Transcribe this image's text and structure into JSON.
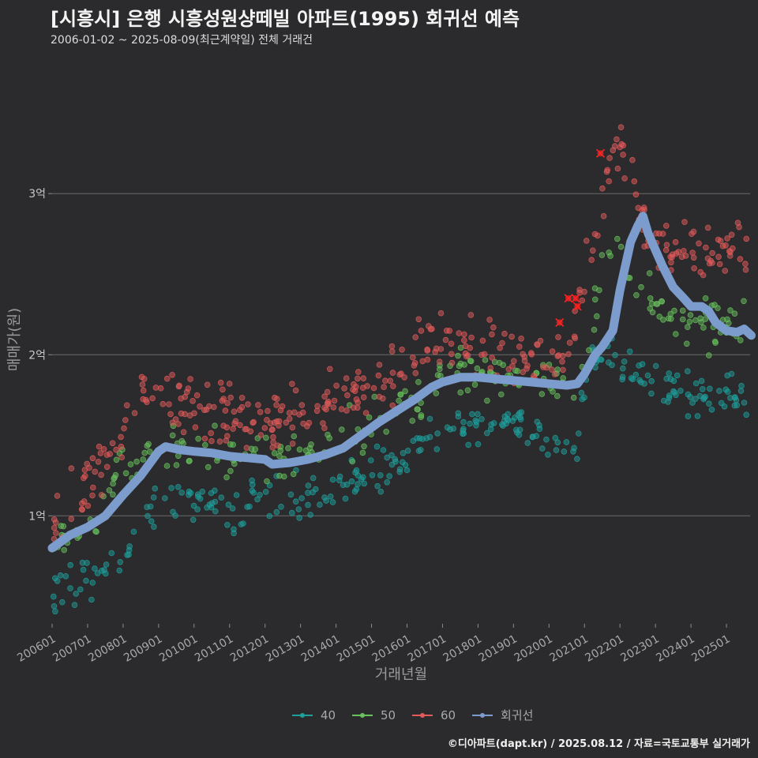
{
  "header": {
    "title": "[시흥시] 은행 시흥성원샹떼빌 아파트(1995) 회귀선 예측",
    "subtitle": "2006-01-02 ~ 2025-08-09(최근계약일) 전체 거래건"
  },
  "footer": {
    "credit": "©디아파트(dapt.kr) / 2025.08.12 / 자료=국토교통부 실거래가"
  },
  "chart_data": {
    "type": "scatter",
    "xlabel": "거래년월",
    "ylabel": "매매가(원)",
    "x_range": [
      "2006-01-01",
      "2025-09-01"
    ],
    "ylim": [
      0.33,
      3.8
    ],
    "y_unit": "억",
    "x_ticks": [
      "200601",
      "200701",
      "200801",
      "200901",
      "201001",
      "201101",
      "201201",
      "201301",
      "201401",
      "201501",
      "201601",
      "201701",
      "201801",
      "201901",
      "202001",
      "202101",
      "202201",
      "202301",
      "202401",
      "202501"
    ],
    "y_ticks": [
      {
        "value": 1,
        "label": "1억"
      },
      {
        "value": 2,
        "label": "2억"
      },
      {
        "value": 3,
        "label": "3억"
      }
    ],
    "grid": "horizontal",
    "legend_position": "bottom",
    "colors": {
      "40": "#1e9f9c",
      "50": "#68c25c",
      "60": "#e45a5a",
      "regression": "#7b9ccc",
      "highlight": "#ff2222",
      "background": "#2b2b2d"
    },
    "series": [
      {
        "name": "40",
        "trend": [
          [
            2006.0,
            0.55
          ],
          [
            2007.0,
            0.62
          ],
          [
            2008.0,
            0.78
          ],
          [
            2009.0,
            1.05
          ],
          [
            2010.0,
            1.1
          ],
          [
            2011.0,
            1.05
          ],
          [
            2012.0,
            1.08
          ],
          [
            2013.0,
            1.1
          ],
          [
            2014.0,
            1.15
          ],
          [
            2015.0,
            1.25
          ],
          [
            2016.0,
            1.35
          ],
          [
            2017.0,
            1.55
          ],
          [
            2018.0,
            1.6
          ],
          [
            2019.0,
            1.55
          ],
          [
            2020.0,
            1.5
          ],
          [
            2020.8,
            1.45
          ],
          [
            2021.0,
            1.9
          ],
          [
            2021.5,
            2.05
          ],
          [
            2022.5,
            1.9
          ],
          [
            2023.5,
            1.8
          ],
          [
            2024.5,
            1.75
          ],
          [
            2025.6,
            1.7
          ]
        ],
        "count": 300,
        "spread": 0.07
      },
      {
        "name": "50",
        "trend": [
          [
            2006.0,
            0.75
          ],
          [
            2007.0,
            0.95
          ],
          [
            2008.0,
            1.25
          ],
          [
            2009.0,
            1.45
          ],
          [
            2010.0,
            1.38
          ],
          [
            2011.0,
            1.35
          ],
          [
            2012.0,
            1.35
          ],
          [
            2013.0,
            1.38
          ],
          [
            2014.0,
            1.45
          ],
          [
            2015.0,
            1.55
          ],
          [
            2016.0,
            1.68
          ],
          [
            2017.0,
            1.85
          ],
          [
            2018.0,
            1.9
          ],
          [
            2019.0,
            1.85
          ],
          [
            2020.0,
            1.78
          ],
          [
            2021.0,
            2.0
          ],
          [
            2021.8,
            2.7
          ],
          [
            2022.5,
            2.45
          ],
          [
            2023.5,
            2.25
          ],
          [
            2024.5,
            2.2
          ],
          [
            2025.6,
            2.2
          ]
        ],
        "count": 250,
        "spread": 0.08
      },
      {
        "name": "60",
        "trend": [
          [
            2006.0,
            0.92
          ],
          [
            2007.0,
            1.2
          ],
          [
            2008.0,
            1.5
          ],
          [
            2008.5,
            1.8
          ],
          [
            2009.0,
            1.72
          ],
          [
            2010.0,
            1.65
          ],
          [
            2011.0,
            1.62
          ],
          [
            2012.0,
            1.6
          ],
          [
            2013.0,
            1.62
          ],
          [
            2014.0,
            1.7
          ],
          [
            2015.0,
            1.82
          ],
          [
            2016.0,
            1.95
          ],
          [
            2017.0,
            2.1
          ],
          [
            2018.0,
            2.05
          ],
          [
            2019.0,
            2.0
          ],
          [
            2020.0,
            1.95
          ],
          [
            2020.7,
            2.1
          ],
          [
            2021.0,
            2.5
          ],
          [
            2021.8,
            3.3
          ],
          [
            2022.3,
            3.2
          ],
          [
            2022.8,
            2.7
          ],
          [
            2023.5,
            2.65
          ],
          [
            2024.5,
            2.65
          ],
          [
            2025.6,
            2.65
          ]
        ],
        "count": 380,
        "spread": 0.09
      },
      {
        "name": "회귀선",
        "line": [
          [
            2006.0,
            0.8
          ],
          [
            2006.5,
            0.88
          ],
          [
            2007.0,
            0.93
          ],
          [
            2007.5,
            1.0
          ],
          [
            2008.0,
            1.13
          ],
          [
            2008.5,
            1.25
          ],
          [
            2009.0,
            1.4
          ],
          [
            2009.2,
            1.43
          ],
          [
            2009.6,
            1.41
          ],
          [
            2010.0,
            1.4
          ],
          [
            2010.5,
            1.39
          ],
          [
            2011.0,
            1.37
          ],
          [
            2011.5,
            1.36
          ],
          [
            2012.0,
            1.35
          ],
          [
            2012.2,
            1.32
          ],
          [
            2012.7,
            1.33
          ],
          [
            2013.2,
            1.35
          ],
          [
            2013.7,
            1.38
          ],
          [
            2014.2,
            1.42
          ],
          [
            2014.7,
            1.5
          ],
          [
            2015.2,
            1.58
          ],
          [
            2015.7,
            1.65
          ],
          [
            2016.2,
            1.72
          ],
          [
            2016.7,
            1.8
          ],
          [
            2017.0,
            1.83
          ],
          [
            2017.5,
            1.86
          ],
          [
            2018.0,
            1.86
          ],
          [
            2018.5,
            1.85
          ],
          [
            2019.0,
            1.84
          ],
          [
            2019.5,
            1.83
          ],
          [
            2020.0,
            1.82
          ],
          [
            2020.5,
            1.81
          ],
          [
            2020.8,
            1.82
          ],
          [
            2021.0,
            1.88
          ],
          [
            2021.3,
            2.0
          ],
          [
            2021.5,
            2.05
          ],
          [
            2021.8,
            2.15
          ],
          [
            2022.0,
            2.4
          ],
          [
            2022.3,
            2.7
          ],
          [
            2022.5,
            2.8
          ],
          [
            2022.65,
            2.86
          ],
          [
            2022.8,
            2.75
          ],
          [
            2023.0,
            2.65
          ],
          [
            2023.2,
            2.55
          ],
          [
            2023.5,
            2.42
          ],
          [
            2023.8,
            2.35
          ],
          [
            2024.0,
            2.3
          ],
          [
            2024.3,
            2.3
          ],
          [
            2024.5,
            2.27
          ],
          [
            2024.7,
            2.2
          ],
          [
            2025.0,
            2.15
          ],
          [
            2025.3,
            2.14
          ],
          [
            2025.5,
            2.16
          ],
          [
            2025.7,
            2.12
          ]
        ]
      }
    ],
    "highlighted_points": [
      [
        2020.3,
        2.2
      ],
      [
        2020.55,
        2.35
      ],
      [
        2020.75,
        2.35
      ],
      [
        2020.8,
        2.3
      ],
      [
        2021.45,
        3.25
      ]
    ]
  }
}
